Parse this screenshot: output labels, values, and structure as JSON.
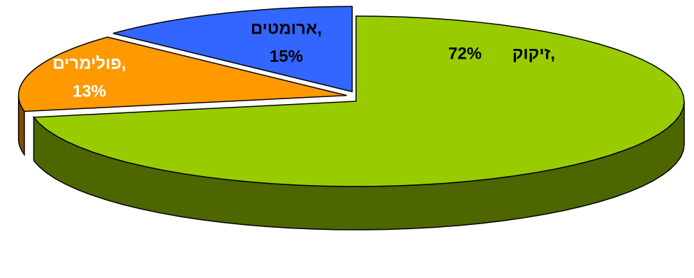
{
  "chart_data": {
    "type": "pie",
    "categories": [
      "זיקוק,",
      "ארומטים,",
      "פולימרים,"
    ],
    "values": [
      72,
      15,
      13
    ],
    "value_labels": [
      "72%",
      "15%",
      "13%"
    ],
    "colors": [
      "#99cc00",
      "#ff9900",
      "#3366ff"
    ]
  }
}
